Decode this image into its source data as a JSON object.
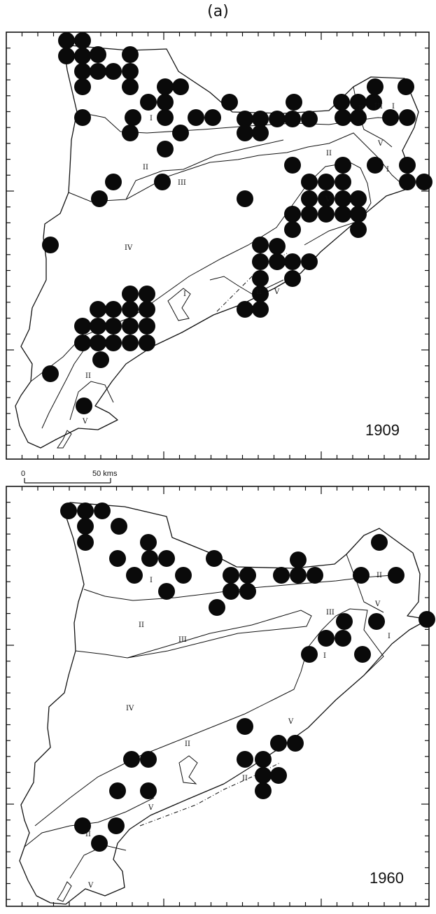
{
  "figure": {
    "label": "(a)"
  },
  "scale": {
    "zero": "0",
    "fifty": "50 kms"
  },
  "maps": [
    {
      "id": "map-1909",
      "year": "1909",
      "zones": [
        "I",
        "II",
        "III",
        "IV",
        "V",
        "I",
        "II",
        "III",
        "I",
        "I",
        "V",
        "II",
        "II",
        "V",
        "II",
        "V"
      ],
      "dot_count": 118
    },
    {
      "id": "map-1960",
      "year": "1960",
      "zones": [
        "I",
        "II",
        "III",
        "IV",
        "I",
        "II",
        "III",
        "V",
        "I",
        "V",
        "II",
        "II",
        "I",
        "V",
        "II",
        "V"
      ],
      "dot_count": 50
    }
  ],
  "colors": {
    "ink": "#111111",
    "dot": "#0a0a0a",
    "paper": "#ffffff"
  }
}
